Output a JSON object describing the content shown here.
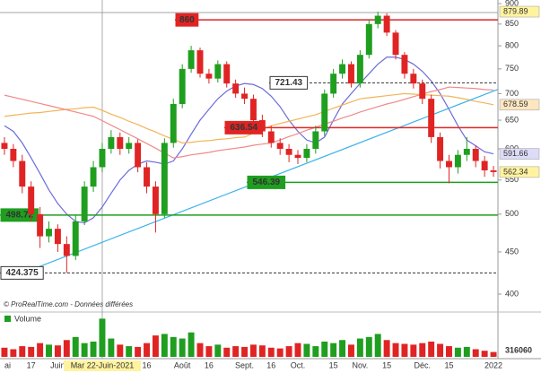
{
  "chart_data": {
    "type": "candlestick",
    "categories": [
      "ai",
      null,
      null,
      "17",
      null,
      null,
      "Juin",
      null,
      null,
      null,
      null,
      "Mar 22-Juin-2021",
      null,
      null,
      null,
      null,
      "16",
      null,
      null,
      null,
      "Août",
      null,
      null,
      "16",
      null,
      null,
      null,
      "Sept.",
      null,
      null,
      "16",
      null,
      null,
      "Oct.",
      null,
      null,
      null,
      "15",
      null,
      null,
      "Nov.",
      null,
      null,
      "15",
      null,
      null,
      null,
      "Déc.",
      null,
      null,
      "15",
      null,
      null,
      null,
      null,
      "2022"
    ],
    "open": [
      610,
      600,
      580,
      540,
      500,
      470,
      480,
      460,
      445,
      490,
      540,
      570,
      600,
      620,
      600,
      610,
      570,
      540,
      500,
      610,
      680,
      750,
      790,
      740,
      730,
      760,
      720,
      700,
      690,
      650,
      630,
      610,
      600,
      590,
      585,
      600,
      630,
      700,
      740,
      760,
      720,
      780,
      850,
      870,
      830,
      780,
      740,
      720,
      690,
      620,
      580,
      570,
      590,
      600,
      580,
      565
    ],
    "high": [
      620,
      608,
      590,
      548,
      510,
      490,
      486,
      470,
      498,
      548,
      580,
      610,
      632,
      628,
      620,
      616,
      578,
      548,
      618,
      690,
      760,
      800,
      796,
      750,
      768,
      766,
      728,
      712,
      698,
      660,
      640,
      618,
      608,
      598,
      608,
      640,
      708,
      750,
      770,
      766,
      790,
      860,
      879.89,
      876,
      836,
      786,
      750,
      728,
      698,
      628,
      590,
      598,
      620,
      606,
      588,
      572
    ],
    "low": [
      590,
      570,
      530,
      490,
      455,
      462,
      450,
      424.375,
      440,
      485,
      532,
      562,
      592,
      590,
      592,
      562,
      530,
      475,
      495,
      602,
      672,
      742,
      732,
      720,
      722,
      712,
      692,
      680,
      640,
      620,
      602,
      590,
      578,
      575,
      578,
      592,
      622,
      692,
      730,
      712,
      712,
      772,
      840,
      822,
      770,
      730,
      710,
      680,
      610,
      568,
      545,
      560,
      580,
      570,
      555,
      555
    ],
    "close": [
      600,
      580,
      540,
      500,
      470,
      480,
      460,
      445,
      490,
      540,
      570,
      600,
      620,
      600,
      610,
      570,
      540,
      500,
      610,
      680,
      750,
      790,
      740,
      730,
      760,
      720,
      700,
      690,
      650,
      630,
      610,
      600,
      590,
      585,
      600,
      630,
      700,
      740,
      760,
      720,
      780,
      850,
      870,
      830,
      780,
      740,
      720,
      690,
      620,
      580,
      570,
      590,
      600,
      580,
      565,
      562.34
    ],
    "up_color": "#1f9e1f",
    "down_color": "#e02424",
    "series": [
      {
        "color": "#6b6bdc",
        "values": [
          640,
          630,
          610,
          585,
          560,
          535,
          515,
          500,
          490,
          488,
          495,
          510,
          530,
          550,
          565,
          575,
          580,
          578,
          575,
          580,
          600,
          625,
          650,
          670,
          690,
          705,
          715,
          720,
          718,
          710,
          695,
          675,
          650,
          630,
          615,
          610,
          620,
          650,
          680,
          700,
          720,
          740,
          760,
          775,
          775,
          770,
          760,
          745,
          725,
          700,
          670,
          640,
          615,
          605,
          595,
          591.66
        ]
      },
      {
        "color": "#f2b455",
        "values": [
          657,
          659,
          661,
          663,
          664,
          666,
          668,
          670,
          671,
          673,
          674,
          668,
          661,
          655,
          648,
          642,
          635,
          629,
          622,
          616,
          610,
          611,
          613,
          614,
          616,
          617,
          619,
          620,
          627,
          633,
          640,
          644,
          648,
          652,
          656,
          660,
          666,
          672,
          678,
          684,
          690,
          692,
          694,
          696,
          698,
          700,
          699,
          698,
          697,
          696,
          695,
          692,
          689,
          685,
          682,
          678.59
        ]
      },
      {
        "color": "#f08a8a",
        "values": [
          697,
          693,
          689,
          685,
          681,
          677,
          673,
          669,
          665,
          661,
          657,
          649,
          641,
          633,
          625,
          617,
          609,
          601,
          593,
          585,
          587,
          590,
          592,
          594,
          597,
          599,
          601,
          603,
          606,
          608,
          610,
          615,
          621,
          626,
          632,
          637,
          643,
          648,
          654,
          659,
          665,
          670,
          675,
          680,
          684,
          689,
          694,
          699,
          704,
          708,
          713,
          712,
          711,
          710,
          708,
          707
        ]
      }
    ],
    "trendline": {
      "color": "#3db3ea",
      "points": [
        [
          1,
          420
        ],
        [
          55,
          705
        ]
      ]
    },
    "levels": [
      {
        "value": 860,
        "color": "#e02424",
        "label_bg": "#e02424",
        "label_color": "#ffffff",
        "dashed": false
      },
      {
        "value": 721.43,
        "color": "#333333",
        "label_bg": "#ffffff",
        "label_color": "#000000",
        "dashed": true
      },
      {
        "value": 636.54,
        "color": "#e02424",
        "label_bg": "#e02424",
        "label_color": "#ffffff",
        "dashed": false
      },
      {
        "value": 546.39,
        "color": "#1f9e1f",
        "label_bg": "#1f9e1f",
        "label_color": "#ffffff",
        "dashed": false
      },
      {
        "value": 498.72,
        "color": "#1f9e1f",
        "label_bg": "#1f9e1f",
        "label_color": "#ffffff",
        "dashed": false
      },
      {
        "value": 424.375,
        "color": "#333333",
        "label_bg": "#ffffff",
        "label_color": "#000000",
        "dashed": true
      }
    ],
    "price_markers": [
      {
        "value": 879.89,
        "bg": "#fff3a0"
      },
      {
        "value": 678.59,
        "bg": "#fde6c0"
      },
      {
        "value": 591.66,
        "bg": "#dcdcf8"
      },
      {
        "value": 562.34,
        "bg": "#fff3a0"
      }
    ],
    "ylim": [
      400,
      900
    ],
    "yticks": [
      400,
      450,
      500,
      550,
      600,
      650,
      700,
      750,
      800,
      850,
      900
    ],
    "log_scale": true,
    "source": "© ProRealTime.com - Données différées",
    "volume": {
      "name": "Volume",
      "color": "#1f9e1f",
      "ylim": [
        0,
        2700000
      ],
      "values": [
        600000,
        500000,
        700000,
        650000,
        900000,
        800000,
        750000,
        1100000,
        1300000,
        900000,
        1000000,
        2500000,
        1200000,
        800000,
        700000,
        650000,
        900000,
        1400000,
        1500000,
        1300000,
        1200000,
        1600000,
        900000,
        700000,
        800000,
        600000,
        700000,
        650000,
        800000,
        750000,
        600000,
        550000,
        700000,
        900000,
        850000,
        700000,
        1000000,
        900000,
        1100000,
        800000,
        1200000,
        1300000,
        1500000,
        1100000,
        900000,
        850000,
        800000,
        900000,
        1000000,
        850000,
        700000,
        600000,
        650000,
        500000,
        400000,
        316060
      ]
    }
  }
}
